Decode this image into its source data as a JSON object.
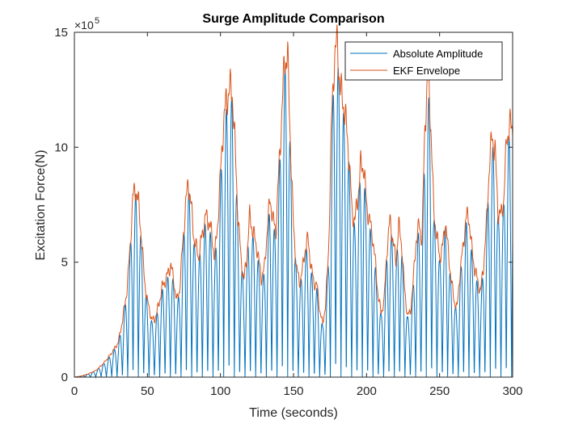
{
  "chart_data": {
    "type": "line",
    "title": "Surge Amplitude Comparison",
    "xlabel": "Time (seconds)",
    "ylabel": "Excitation Force(N)",
    "xlim": [
      0,
      300
    ],
    "ylim": [
      0,
      1500000
    ],
    "xticks": [
      0,
      50,
      100,
      150,
      200,
      250,
      300
    ],
    "yticks": [
      0,
      500000,
      1000000,
      1500000
    ],
    "ytick_labels": [
      "0",
      "5",
      "10",
      "15"
    ],
    "y_exponent_base": "×10",
    "y_exponent_power": "5",
    "legend_location": "top-right",
    "grid": false,
    "series": [
      {
        "name": "Absolute Amplitude",
        "color": "#0072BD",
        "style": "oscillating-rectified",
        "period_s": 3.65
      },
      {
        "name": "EKF Envelope",
        "color": "#D95319",
        "style": "envelope"
      }
    ],
    "envelope": {
      "x": [
        0,
        5,
        10,
        15,
        20,
        25,
        30,
        33,
        36,
        38,
        40,
        42,
        44,
        46,
        48,
        50,
        53,
        55,
        58,
        60,
        63,
        66,
        68,
        70,
        72,
        74,
        76,
        78,
        80,
        82,
        85,
        88,
        90,
        92,
        94,
        96,
        98,
        100,
        102,
        104,
        106,
        108,
        110,
        112,
        114,
        116,
        118,
        120,
        122,
        125,
        128,
        130,
        132,
        134,
        136,
        138,
        140,
        142,
        144,
        146,
        148,
        150,
        152,
        154,
        156,
        158,
        160,
        162,
        164,
        166,
        168,
        170,
        172,
        174,
        176,
        178,
        180,
        182,
        184,
        186,
        188,
        190,
        192,
        194,
        196,
        198,
        200,
        202,
        204,
        206,
        208,
        210,
        212,
        214,
        216,
        218,
        220,
        222,
        224,
        226,
        228,
        230,
        232,
        234,
        236,
        238,
        240,
        242,
        244,
        246,
        248,
        250,
        252,
        254,
        256,
        258,
        260,
        262,
        264,
        266,
        268,
        270,
        272,
        274,
        276,
        278,
        280,
        282,
        284,
        286,
        288,
        290,
        292,
        294,
        296,
        298,
        300
      ],
      "y": [
        0,
        5000,
        15000,
        30000,
        60000,
        100000,
        150000,
        250000,
        380000,
        550000,
        780000,
        820000,
        750000,
        600000,
        420000,
        330000,
        250000,
        250000,
        320000,
        390000,
        430000,
        490000,
        420000,
        330000,
        380000,
        560000,
        740000,
        850000,
        740000,
        600000,
        520000,
        640000,
        700000,
        680000,
        620000,
        520000,
        660000,
        880000,
        1100000,
        1200000,
        1250000,
        1250000,
        1000000,
        700000,
        520000,
        420000,
        520000,
        700000,
        640000,
        560000,
        430000,
        470000,
        640000,
        780000,
        680000,
        640000,
        900000,
        1150000,
        1390000,
        1390000,
        1000000,
        650000,
        480000,
        410000,
        460000,
        560000,
        600000,
        480000,
        410000,
        400000,
        290000,
        230000,
        320000,
        550000,
        1100000,
        1400000,
        1450000,
        1250000,
        1200000,
        1100000,
        960000,
        720000,
        680000,
        780000,
        920000,
        920000,
        750000,
        680000,
        620000,
        500000,
        350000,
        280000,
        330000,
        560000,
        680000,
        600000,
        500000,
        660000,
        580000,
        380000,
        270000,
        280000,
        420000,
        600000,
        660000,
        600000,
        1100000,
        1330000,
        1100000,
        720000,
        620000,
        520000,
        560000,
        680000,
        540000,
        420000,
        330000,
        300000,
        460000,
        560000,
        690000,
        700000,
        560000,
        470000,
        420000,
        370000,
        480000,
        650000,
        920000,
        1050000,
        980000,
        720000,
        700000,
        780000,
        1050000,
        1090000,
        1090000
      ]
    }
  }
}
